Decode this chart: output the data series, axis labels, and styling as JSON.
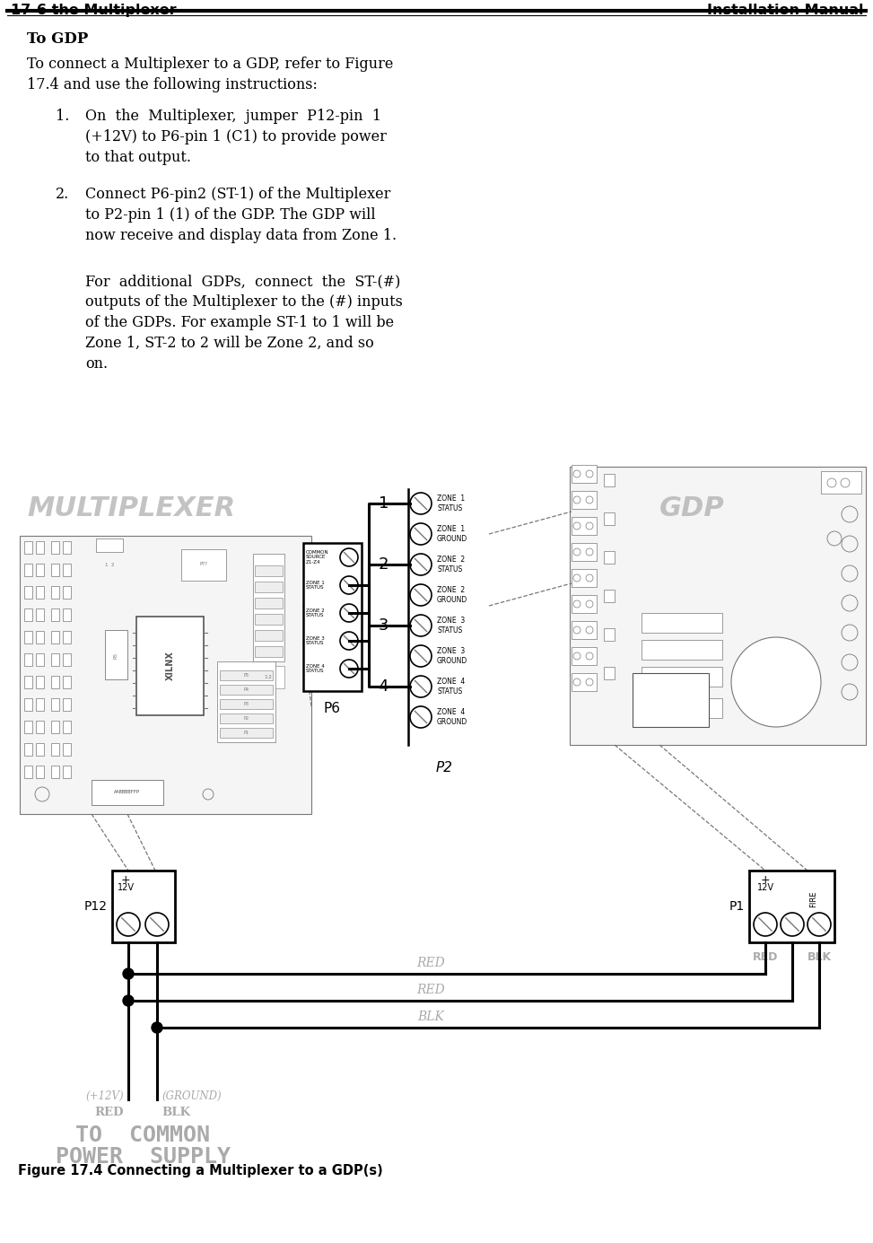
{
  "header_left": "17-6 the Multiplexer",
  "header_right": "Installation Manual",
  "section_title": "To GDP",
  "body_line1": "To connect a Multiplexer to a GDP, refer to Figure",
  "body_line2": "17.4 and use the following instructions:",
  "inst1_num": "1.",
  "inst1_lines": [
    "On  the  Multiplexer,  jumper  P12-pin  1",
    "(+12V) to P6-pin 1 (C1) to provide power",
    "to that output."
  ],
  "inst2_num": "2.",
  "inst2_lines": [
    "Connect P6-pin2 (ST-1) of the Multiplexer",
    "to P2-pin 1 (1) of the GDP. The GDP will",
    "now receive and display data from Zone 1."
  ],
  "extra_lines": [
    "For  additional  GDPs,  connect  the  ST-(#)",
    "outputs of the Multiplexer to the (#) inputs",
    "of the GDPs. For example ST-1 to 1 will be",
    "Zone 1, ST-2 to 2 will be Zone 2, and so",
    "on."
  ],
  "p6_pins": [
    "COMMON\nSOURCE\nZ1-Z4",
    "ZONE 1\nSTATUS",
    "ZONE 2\nSTATUS",
    "ZONE 3\nSTATUS",
    "ZONE 4\nSTATUS"
  ],
  "p2_pins": [
    "ZONE  1\nSTATUS",
    "ZONE  1\nGROUND",
    "ZONE  2\nSTATUS",
    "ZONE  2\nGROUND",
    "ZONE  3\nSTATUS",
    "ZONE  3\nGROUND",
    "ZONE  4\nSTATUS",
    "ZONE  4\nGROUND"
  ],
  "p2_numbers": [
    "1",
    "",
    "2",
    "",
    "3",
    "",
    "4",
    ""
  ],
  "fig_caption": "Figure 17.4 Connecting a Multiplexer to a GDP(s)",
  "bg_color": "#ffffff",
  "black": "#000000",
  "gray": "#777777",
  "lgray": "#aaaaaa",
  "dgray": "#555555"
}
